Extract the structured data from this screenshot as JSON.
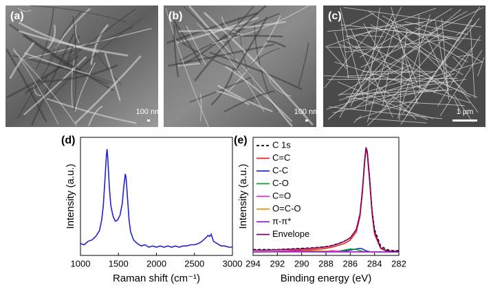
{
  "images": [
    {
      "label": "(a)",
      "scale_bar": "100 nm"
    },
    {
      "label": "(b)",
      "scale_bar": "100 nm"
    },
    {
      "label": "(c)",
      "scale_bar": "1 µm"
    }
  ],
  "chart_data": [
    {
      "type": "line",
      "panel_label": "(d)",
      "x_label": "Raman shift (cm⁻¹)",
      "y_label": "Intensity (a.u.)",
      "xlim": [
        1000,
        3000
      ],
      "xticks": [
        1000,
        1500,
        2000,
        2500,
        3000
      ],
      "ylim": [
        0,
        1
      ],
      "color": "#1f1fd6",
      "x": [
        1000,
        1050,
        1100,
        1150,
        1200,
        1250,
        1280,
        1300,
        1320,
        1340,
        1350,
        1360,
        1380,
        1400,
        1430,
        1460,
        1490,
        1520,
        1550,
        1570,
        1590,
        1600,
        1620,
        1640,
        1660,
        1700,
        1750,
        1800,
        1850,
        1900,
        1950,
        2000,
        2050,
        2100,
        2150,
        2200,
        2250,
        2300,
        2350,
        2400,
        2450,
        2500,
        2550,
        2600,
        2650,
        2680,
        2700,
        2720,
        2750,
        2800,
        2850,
        2900,
        2950,
        3000
      ],
      "values": [
        0.1,
        0.09,
        0.12,
        0.13,
        0.16,
        0.21,
        0.3,
        0.42,
        0.62,
        0.84,
        0.9,
        0.82,
        0.58,
        0.42,
        0.33,
        0.29,
        0.3,
        0.34,
        0.44,
        0.58,
        0.69,
        0.66,
        0.48,
        0.3,
        0.2,
        0.13,
        0.1,
        0.08,
        0.09,
        0.07,
        0.08,
        0.07,
        0.08,
        0.07,
        0.08,
        0.07,
        0.08,
        0.07,
        0.08,
        0.08,
        0.09,
        0.09,
        0.1,
        0.12,
        0.15,
        0.17,
        0.16,
        0.18,
        0.12,
        0.1,
        0.08,
        0.08,
        0.07,
        0.07
      ]
    },
    {
      "type": "line",
      "panel_label": "(e)",
      "x_label": "Binding energy (eV)",
      "y_label": "Intensity (a.u.)",
      "xlim": [
        294,
        282
      ],
      "xticks": [
        294,
        292,
        290,
        288,
        286,
        284,
        282
      ],
      "ylim": [
        0,
        1
      ],
      "x": [
        294,
        293,
        292,
        291,
        290,
        289,
        288,
        287.5,
        287,
        286.5,
        286,
        285.5,
        285.2,
        285,
        284.8,
        284.7,
        284.6,
        284.4,
        284.2,
        284,
        283.5,
        283,
        282.5,
        282
      ],
      "series": [
        {
          "name": "C 1s",
          "color": "#000000",
          "dashed": true,
          "values": [
            0.05,
            0.05,
            0.05,
            0.055,
            0.06,
            0.065,
            0.075,
            0.085,
            0.1,
            0.12,
            0.15,
            0.22,
            0.35,
            0.55,
            0.82,
            0.91,
            0.88,
            0.65,
            0.38,
            0.22,
            0.08,
            0.05,
            0.04,
            0.04
          ]
        },
        {
          "name": "C=C",
          "color": "#e8231f",
          "values": [
            0.03,
            0.03,
            0.035,
            0.04,
            0.045,
            0.05,
            0.06,
            0.07,
            0.085,
            0.1,
            0.13,
            0.2,
            0.33,
            0.53,
            0.8,
            0.9,
            0.86,
            0.62,
            0.35,
            0.18,
            0.06,
            0.035,
            0.03,
            0.03
          ]
        },
        {
          "name": "C-C",
          "color": "#1a2fc8",
          "values": [
            0.03,
            0.03,
            0.03,
            0.03,
            0.03,
            0.03,
            0.03,
            0.03,
            0.032,
            0.036,
            0.045,
            0.055,
            0.06,
            0.055,
            0.045,
            0.04,
            0.036,
            0.032,
            0.03,
            0.03,
            0.03,
            0.03,
            0.03,
            0.03
          ]
        },
        {
          "name": "C-O",
          "color": "#119a2a",
          "values": [
            0.03,
            0.03,
            0.03,
            0.03,
            0.03,
            0.03,
            0.03,
            0.032,
            0.036,
            0.045,
            0.055,
            0.05,
            0.04,
            0.035,
            0.032,
            0.03,
            0.03,
            0.03,
            0.03,
            0.03,
            0.03,
            0.03,
            0.03,
            0.03
          ]
        },
        {
          "name": "C=O",
          "color": "#f02ef0",
          "values": [
            0.03,
            0.03,
            0.03,
            0.03,
            0.03,
            0.032,
            0.036,
            0.04,
            0.036,
            0.032,
            0.03,
            0.03,
            0.03,
            0.03,
            0.03,
            0.03,
            0.03,
            0.03,
            0.03,
            0.03,
            0.03,
            0.03,
            0.03,
            0.03
          ]
        },
        {
          "name": "O=C-O",
          "color": "#e08a10",
          "values": [
            0.03,
            0.03,
            0.032,
            0.036,
            0.038,
            0.04,
            0.036,
            0.033,
            0.03,
            0.03,
            0.03,
            0.03,
            0.03,
            0.03,
            0.03,
            0.03,
            0.03,
            0.03,
            0.03,
            0.03,
            0.03,
            0.03,
            0.03,
            0.03
          ]
        },
        {
          "name": "π-π*",
          "color": "#a020d0",
          "values": [
            0.03,
            0.032,
            0.034,
            0.036,
            0.035,
            0.032,
            0.03,
            0.03,
            0.03,
            0.03,
            0.03,
            0.03,
            0.03,
            0.03,
            0.03,
            0.03,
            0.03,
            0.03,
            0.03,
            0.03,
            0.03,
            0.03,
            0.03,
            0.03
          ]
        },
        {
          "name": "Envelope",
          "color": "#800060",
          "values": [
            0.045,
            0.045,
            0.048,
            0.052,
            0.056,
            0.062,
            0.072,
            0.082,
            0.098,
            0.118,
            0.148,
            0.22,
            0.35,
            0.55,
            0.82,
            0.915,
            0.875,
            0.64,
            0.37,
            0.2,
            0.065,
            0.04,
            0.035,
            0.035
          ]
        }
      ]
    }
  ]
}
